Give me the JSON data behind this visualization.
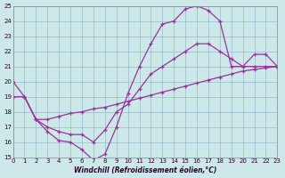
{
  "xlabel": "Windchill (Refroidissement éolien,°C)",
  "xlim": [
    0,
    23
  ],
  "ylim": [
    15,
    25
  ],
  "xticks": [
    0,
    1,
    2,
    3,
    4,
    5,
    6,
    7,
    8,
    9,
    10,
    11,
    12,
    13,
    14,
    15,
    16,
    17,
    18,
    19,
    20,
    21,
    22,
    23
  ],
  "yticks": [
    15,
    16,
    17,
    18,
    19,
    20,
    21,
    22,
    23,
    24,
    25
  ],
  "background_color": "#cce8e8",
  "grid_color": "#99bbcc",
  "line_color": "#993399",
  "line1_x": [
    0,
    1,
    2,
    3,
    4,
    5,
    6,
    7,
    8,
    9,
    10,
    11,
    12,
    13,
    14,
    15,
    16,
    17,
    18,
    19,
    20,
    21,
    22,
    23
  ],
  "line1_y": [
    20,
    19,
    17.5,
    16.7,
    16.1,
    16.0,
    15.5,
    14.8,
    15.2,
    17.0,
    19.2,
    21.0,
    22.5,
    23.8,
    24.0,
    24.8,
    25.0,
    24.7,
    24.0,
    21.0,
    21.0,
    21.8,
    21.8,
    21.0
  ],
  "line2_x": [
    0,
    1,
    2,
    3,
    4,
    5,
    6,
    7,
    8,
    9,
    10,
    11,
    12,
    13,
    14,
    15,
    16,
    17,
    18,
    19,
    20,
    21,
    22,
    23
  ],
  "line2_y": [
    19,
    19,
    17.5,
    17.5,
    17.7,
    17.9,
    18.0,
    18.2,
    18.3,
    18.5,
    18.7,
    18.9,
    19.1,
    19.3,
    19.5,
    19.7,
    19.9,
    20.1,
    20.3,
    20.5,
    20.7,
    20.8,
    20.9,
    21.0
  ],
  "line3_x": [
    1,
    2,
    3,
    4,
    5,
    6,
    7,
    8,
    9,
    10,
    11,
    12,
    13,
    14,
    15,
    16,
    17,
    18,
    19,
    20,
    21,
    22,
    23
  ],
  "line3_y": [
    19,
    17.5,
    17.0,
    16.7,
    16.5,
    16.5,
    16.0,
    16.8,
    18.0,
    18.5,
    19.5,
    20.5,
    21.0,
    21.5,
    22.0,
    22.5,
    22.5,
    22.0,
    21.5,
    21.0,
    21.0,
    21.0,
    21.0
  ]
}
